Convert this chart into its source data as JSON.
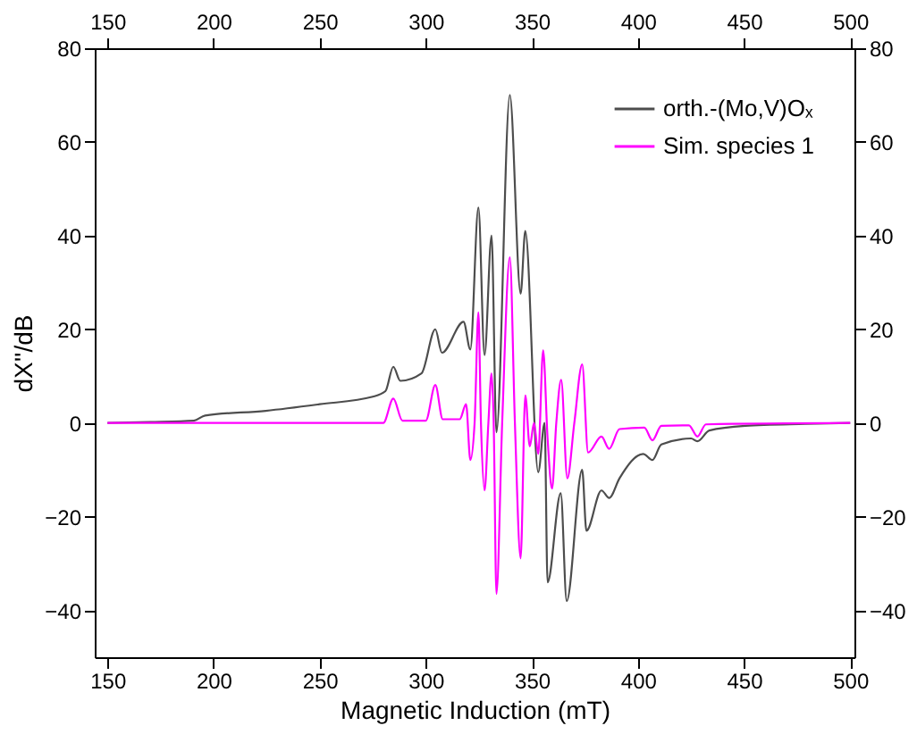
{
  "chart_data": {
    "type": "line",
    "xlabel": "Magnetic Induction (mT)",
    "ylabel": "dX''/dB",
    "xlim": [
      144,
      502
    ],
    "xticks": [
      150,
      200,
      250,
      300,
      350,
      400,
      450,
      500
    ],
    "x2lim": [
      144,
      502
    ],
    "x2ticks": [
      150,
      200,
      250,
      300,
      350,
      400,
      450,
      500
    ],
    "ylim": [
      -50,
      80
    ],
    "yticks": [
      -40,
      -20,
      0,
      20,
      40,
      60,
      80
    ],
    "y2lim": [
      -50,
      80
    ],
    "y2ticks": [
      -40,
      -20,
      0,
      20,
      40,
      60,
      80
    ],
    "grid": false,
    "legend": "top right",
    "marker": "none",
    "line_style": "solid",
    "series": [
      {
        "name": "orth.-(Mo,V)Oₓ",
        "color": "#4d4d4d",
        "x": [
          150,
          170,
          190.7,
          196,
          224.6,
          250,
          275,
          281,
          284.7,
          288,
          298,
          304.5,
          307.6,
          317.8,
          321,
          324.8,
          327.7,
          331,
          333.3,
          339.6,
          344.7,
          346.9,
          353,
          356,
          357.4,
          363.6,
          366.4,
          373.7,
          375.7,
          382.8,
          386.4,
          391.3,
          402.5,
          406.8,
          411,
          425,
          428,
          433.6,
          450.6,
          478.8,
          500
        ],
        "values": [
          0,
          0.2,
          0.5,
          1.6,
          2.6,
          4,
          5.6,
          6.8,
          12,
          9,
          10.6,
          20,
          15,
          21.6,
          15.7,
          46,
          14.5,
          40,
          -2,
          70,
          27.6,
          41,
          -10.5,
          0,
          -34,
          -15,
          -38,
          -10,
          -23,
          -14.4,
          -16,
          -11.8,
          -6.6,
          -7.9,
          -4.6,
          -3.3,
          -3.9,
          -1.6,
          -0.6,
          -0.2,
          0
        ]
      },
      {
        "name": "Sim. species 1",
        "color": "#ff00ff",
        "x": [
          150,
          280,
          284.7,
          289,
          300,
          304.5,
          308,
          316,
          319,
          321,
          323,
          324.8,
          326,
          327.7,
          329.5,
          331,
          332,
          333.3,
          336,
          339.6,
          342,
          344.7,
          346.9,
          349,
          351,
          353,
          355.3,
          357.4,
          359.5,
          361.5,
          363.8,
          366.7,
          370,
          373.7,
          376.5,
          382.8,
          386.4,
          391.3,
          403,
          406.8,
          411,
          424,
          428,
          432,
          500
        ],
        "values": [
          0,
          0,
          5.2,
          0.5,
          0.5,
          8.1,
          0.8,
          0.8,
          4,
          -7.9,
          0,
          23.6,
          0,
          -14.4,
          0,
          10.6,
          0,
          -36.5,
          0,
          35.4,
          0,
          -28.9,
          5.9,
          -5,
          0,
          -6.6,
          15.5,
          -3.3,
          -14,
          0,
          9.2,
          -11.8,
          0,
          12.5,
          -6.3,
          -2.9,
          -5.5,
          -1.3,
          -1,
          -3.7,
          -0.6,
          -0.5,
          -2.9,
          -0.3,
          0
        ]
      }
    ]
  }
}
